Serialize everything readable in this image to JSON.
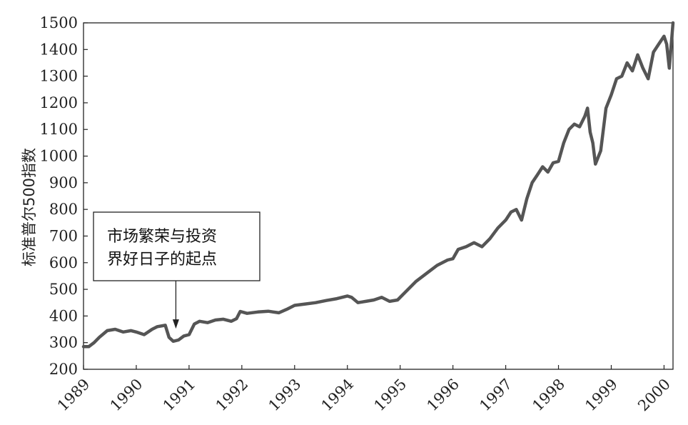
{
  "chart_data": {
    "type": "line",
    "title": "",
    "xlabel": "",
    "ylabel": "标准普尔500指数",
    "ylim": [
      200,
      1500
    ],
    "xlim": [
      1989.0,
      2000.17
    ],
    "grid": false,
    "legend": "none",
    "y_ticks": [
      200,
      300,
      400,
      500,
      600,
      700,
      800,
      900,
      1000,
      1100,
      1200,
      1300,
      1400,
      1500
    ],
    "x_ticks": [
      "1989",
      "1990",
      "1991",
      "1992",
      "1993",
      "1994",
      "1995",
      "1996",
      "1997",
      "1998",
      "1999",
      "2000"
    ],
    "series": [
      {
        "color": "#555555",
        "x": [
          1989.0,
          1989.1,
          1989.2,
          1989.3,
          1989.45,
          1989.6,
          1989.75,
          1989.9,
          1990.0,
          1990.15,
          1990.3,
          1990.4,
          1990.55,
          1990.62,
          1990.7,
          1990.8,
          1990.9,
          1991.0,
          1991.1,
          1991.2,
          1991.35,
          1991.5,
          1991.65,
          1991.8,
          1991.9,
          1991.97,
          1992.1,
          1992.3,
          1992.5,
          1992.7,
          1992.85,
          1993.0,
          1993.2,
          1993.4,
          1993.6,
          1993.8,
          1994.0,
          1994.08,
          1994.2,
          1994.35,
          1994.5,
          1994.65,
          1994.8,
          1994.95,
          1995.1,
          1995.3,
          1995.5,
          1995.7,
          1995.9,
          1996.0,
          1996.1,
          1996.25,
          1996.4,
          1996.55,
          1996.7,
          1996.85,
          1997.0,
          1997.1,
          1997.2,
          1997.3,
          1997.4,
          1997.5,
          1997.6,
          1997.7,
          1997.8,
          1997.9,
          1998.0,
          1998.1,
          1998.2,
          1998.3,
          1998.4,
          1998.5,
          1998.55,
          1998.6,
          1998.65,
          1998.7,
          1998.8,
          1998.9,
          1999.0,
          1999.1,
          1999.2,
          1999.3,
          1999.4,
          1999.5,
          1999.6,
          1999.7,
          1999.8,
          1999.9,
          2000.0,
          2000.05,
          2000.1,
          2000.17
        ],
        "y": [
          285,
          285,
          300,
          320,
          345,
          350,
          340,
          345,
          340,
          330,
          350,
          360,
          365,
          320,
          305,
          310,
          325,
          330,
          370,
          380,
          375,
          385,
          388,
          380,
          390,
          417,
          410,
          415,
          418,
          412,
          425,
          440,
          445,
          450,
          458,
          465,
          475,
          470,
          450,
          455,
          460,
          470,
          455,
          460,
          490,
          530,
          560,
          590,
          610,
          615,
          650,
          660,
          675,
          660,
          690,
          730,
          760,
          790,
          800,
          760,
          840,
          900,
          930,
          960,
          940,
          975,
          980,
          1050,
          1100,
          1120,
          1110,
          1150,
          1180,
          1090,
          1050,
          970,
          1020,
          1180,
          1230,
          1290,
          1300,
          1350,
          1320,
          1380,
          1330,
          1290,
          1390,
          1420,
          1450,
          1420,
          1330,
          1500
        ]
      }
    ],
    "annotations": [
      {
        "lines": [
          "市场繁荣与投资",
          "界好日子的起点"
        ],
        "arrow_to": [
          1990.75,
          315
        ]
      }
    ]
  }
}
